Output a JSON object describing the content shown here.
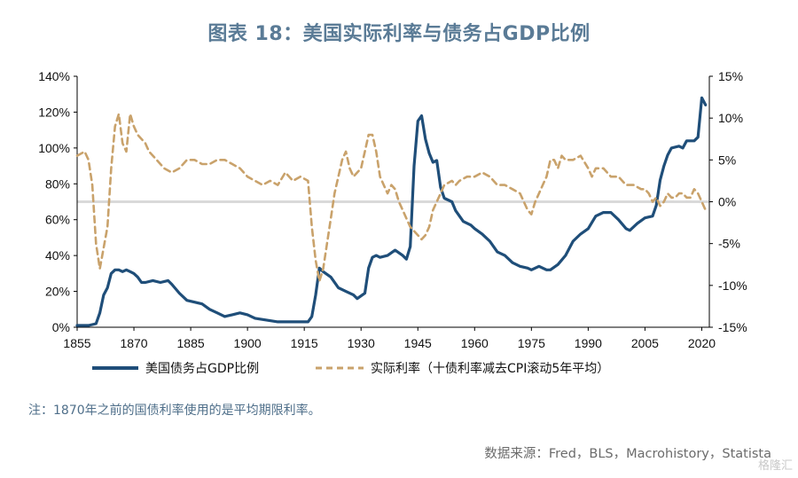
{
  "title": "图表 18：美国实际利率与债务占GDP比例",
  "note": "注：1870年之前的国债利率使用的是平均期限利率。",
  "source": "数据来源：Fred，BLS，Macrohistory，Statista",
  "watermark": "格隆汇",
  "chart_data": {
    "type": "line",
    "x_ticks": [
      "1855",
      "1870",
      "1885",
      "1900",
      "1915",
      "1930",
      "1945",
      "1960",
      "1975",
      "1990",
      "2005",
      "2020"
    ],
    "y_left_ticks": [
      "0%",
      "20%",
      "40%",
      "60%",
      "80%",
      "100%",
      "120%",
      "140%"
    ],
    "y_right_ticks": [
      "-15%",
      "-10%",
      "-5%",
      "0%",
      "5%",
      "10%",
      "15%"
    ],
    "xlim": [
      1855,
      2022
    ],
    "ylim_left": [
      0,
      140
    ],
    "ylim_right": [
      -15,
      15
    ],
    "legend_placement": "bottom",
    "colors": {
      "debt": "#1f4e79",
      "real_rate": "#c9a26b",
      "zero_line": "#d9d9d9"
    },
    "series": [
      {
        "name": "美国债务占GDP比例",
        "axis": "left",
        "style": "solid",
        "points": [
          [
            1855,
            1
          ],
          [
            1858,
            1
          ],
          [
            1860,
            2
          ],
          [
            1861,
            8
          ],
          [
            1862,
            18
          ],
          [
            1863,
            22
          ],
          [
            1864,
            30
          ],
          [
            1865,
            32
          ],
          [
            1866,
            32
          ],
          [
            1867,
            31
          ],
          [
            1868,
            32
          ],
          [
            1869,
            31
          ],
          [
            1870,
            30
          ],
          [
            1871,
            28
          ],
          [
            1872,
            25
          ],
          [
            1873,
            25
          ],
          [
            1875,
            26
          ],
          [
            1877,
            25
          ],
          [
            1879,
            26
          ],
          [
            1880,
            24
          ],
          [
            1882,
            19
          ],
          [
            1884,
            15
          ],
          [
            1886,
            14
          ],
          [
            1888,
            13
          ],
          [
            1890,
            10
          ],
          [
            1892,
            8
          ],
          [
            1894,
            6
          ],
          [
            1896,
            7
          ],
          [
            1898,
            8
          ],
          [
            1900,
            7
          ],
          [
            1902,
            5
          ],
          [
            1905,
            4
          ],
          [
            1908,
            3
          ],
          [
            1910,
            3
          ],
          [
            1913,
            3
          ],
          [
            1916,
            3
          ],
          [
            1917,
            6
          ],
          [
            1918,
            18
          ],
          [
            1919,
            33
          ],
          [
            1920,
            31
          ],
          [
            1922,
            28
          ],
          [
            1924,
            22
          ],
          [
            1926,
            20
          ],
          [
            1928,
            18
          ],
          [
            1929,
            16
          ],
          [
            1931,
            19
          ],
          [
            1932,
            33
          ],
          [
            1933,
            39
          ],
          [
            1934,
            40
          ],
          [
            1935,
            39
          ],
          [
            1937,
            40
          ],
          [
            1939,
            43
          ],
          [
            1941,
            40
          ],
          [
            1942,
            38
          ],
          [
            1943,
            45
          ],
          [
            1944,
            90
          ],
          [
            1945,
            115
          ],
          [
            1946,
            118
          ],
          [
            1947,
            105
          ],
          [
            1948,
            97
          ],
          [
            1949,
            92
          ],
          [
            1950,
            93
          ],
          [
            1951,
            78
          ],
          [
            1952,
            72
          ],
          [
            1954,
            70
          ],
          [
            1955,
            65
          ],
          [
            1957,
            59
          ],
          [
            1959,
            57
          ],
          [
            1960,
            55
          ],
          [
            1962,
            52
          ],
          [
            1964,
            48
          ],
          [
            1966,
            42
          ],
          [
            1968,
            40
          ],
          [
            1970,
            36
          ],
          [
            1972,
            34
          ],
          [
            1974,
            33
          ],
          [
            1975,
            32
          ],
          [
            1977,
            34
          ],
          [
            1979,
            32
          ],
          [
            1980,
            32
          ],
          [
            1982,
            35
          ],
          [
            1984,
            40
          ],
          [
            1986,
            48
          ],
          [
            1988,
            52
          ],
          [
            1990,
            55
          ],
          [
            1992,
            62
          ],
          [
            1994,
            64
          ],
          [
            1996,
            64
          ],
          [
            1998,
            60
          ],
          [
            2000,
            55
          ],
          [
            2001,
            54
          ],
          [
            2003,
            58
          ],
          [
            2005,
            61
          ],
          [
            2007,
            62
          ],
          [
            2008,
            68
          ],
          [
            2009,
            82
          ],
          [
            2010,
            90
          ],
          [
            2011,
            96
          ],
          [
            2012,
            100
          ],
          [
            2014,
            101
          ],
          [
            2015,
            100
          ],
          [
            2016,
            104
          ],
          [
            2018,
            104
          ],
          [
            2019,
            106
          ],
          [
            2020,
            128
          ],
          [
            2021,
            124
          ]
        ]
      },
      {
        "name": "实际利率（十债利率减去CPI滚动5年平均）",
        "axis": "right",
        "style": "dashed",
        "points": [
          [
            1855,
            5.5
          ],
          [
            1857,
            6
          ],
          [
            1858,
            5
          ],
          [
            1859,
            2
          ],
          [
            1860,
            -5
          ],
          [
            1861,
            -8
          ],
          [
            1862,
            -5.5
          ],
          [
            1863,
            -3
          ],
          [
            1864,
            4
          ],
          [
            1865,
            9
          ],
          [
            1866,
            10.5
          ],
          [
            1867,
            7
          ],
          [
            1868,
            6
          ],
          [
            1869,
            10.5
          ],
          [
            1870,
            9
          ],
          [
            1871,
            8
          ],
          [
            1872,
            7.5
          ],
          [
            1873,
            7
          ],
          [
            1874,
            6
          ],
          [
            1876,
            5
          ],
          [
            1878,
            4
          ],
          [
            1880,
            3.5
          ],
          [
            1882,
            4
          ],
          [
            1884,
            5
          ],
          [
            1886,
            5
          ],
          [
            1888,
            4.5
          ],
          [
            1890,
            4.5
          ],
          [
            1892,
            5
          ],
          [
            1894,
            5
          ],
          [
            1896,
            4.5
          ],
          [
            1898,
            4
          ],
          [
            1900,
            3
          ],
          [
            1902,
            2.5
          ],
          [
            1904,
            2
          ],
          [
            1906,
            2.5
          ],
          [
            1908,
            2
          ],
          [
            1910,
            3.5
          ],
          [
            1912,
            2.5
          ],
          [
            1914,
            3
          ],
          [
            1916,
            2.5
          ],
          [
            1917,
            -3
          ],
          [
            1918,
            -7
          ],
          [
            1919,
            -9.5
          ],
          [
            1920,
            -8
          ],
          [
            1921,
            -5
          ],
          [
            1922,
            -2
          ],
          [
            1923,
            1
          ],
          [
            1924,
            3
          ],
          [
            1925,
            5
          ],
          [
            1926,
            6
          ],
          [
            1927,
            4
          ],
          [
            1928,
            3
          ],
          [
            1929,
            3.5
          ],
          [
            1930,
            4
          ],
          [
            1931,
            6
          ],
          [
            1932,
            8
          ],
          [
            1933,
            8
          ],
          [
            1934,
            6
          ],
          [
            1935,
            3
          ],
          [
            1936,
            2
          ],
          [
            1937,
            1
          ],
          [
            1938,
            2
          ],
          [
            1939,
            1.5
          ],
          [
            1940,
            0
          ],
          [
            1941,
            -1
          ],
          [
            1942,
            -2
          ],
          [
            1943,
            -3
          ],
          [
            1944,
            -3.5
          ],
          [
            1945,
            -4
          ],
          [
            1946,
            -4.5
          ],
          [
            1947,
            -4
          ],
          [
            1948,
            -3
          ],
          [
            1949,
            -1
          ],
          [
            1950,
            0
          ],
          [
            1951,
            1
          ],
          [
            1952,
            2
          ],
          [
            1954,
            2.5
          ],
          [
            1955,
            2
          ],
          [
            1956,
            2.5
          ],
          [
            1958,
            3
          ],
          [
            1960,
            3
          ],
          [
            1962,
            3.5
          ],
          [
            1964,
            3
          ],
          [
            1966,
            2
          ],
          [
            1968,
            2
          ],
          [
            1970,
            1.5
          ],
          [
            1972,
            1
          ],
          [
            1973,
            0
          ],
          [
            1974,
            -1
          ],
          [
            1975,
            -1.5
          ],
          [
            1976,
            0
          ],
          [
            1977,
            1
          ],
          [
            1978,
            2
          ],
          [
            1979,
            3
          ],
          [
            1980,
            5
          ],
          [
            1981,
            5
          ],
          [
            1982,
            4
          ],
          [
            1983,
            5.5
          ],
          [
            1984,
            5
          ],
          [
            1986,
            5
          ],
          [
            1988,
            5.5
          ],
          [
            1990,
            4
          ],
          [
            1991,
            3
          ],
          [
            1992,
            4
          ],
          [
            1994,
            4
          ],
          [
            1996,
            3
          ],
          [
            1998,
            3
          ],
          [
            2000,
            2
          ],
          [
            2002,
            2
          ],
          [
            2004,
            1.5
          ],
          [
            2005,
            1.5
          ],
          [
            2006,
            1
          ],
          [
            2007,
            0
          ],
          [
            2008,
            0.5
          ],
          [
            2009,
            -0.5
          ],
          [
            2010,
            0
          ],
          [
            2011,
            1
          ],
          [
            2012,
            0.5
          ],
          [
            2013,
            0.5
          ],
          [
            2014,
            1
          ],
          [
            2015,
            1
          ],
          [
            2016,
            0.5
          ],
          [
            2017,
            0.5
          ],
          [
            2018,
            1.5
          ],
          [
            2019,
            1
          ],
          [
            2020,
            0
          ],
          [
            2021,
            -1
          ]
        ]
      }
    ],
    "reference_lines": [
      {
        "axis": "right",
        "value": 0
      }
    ]
  }
}
